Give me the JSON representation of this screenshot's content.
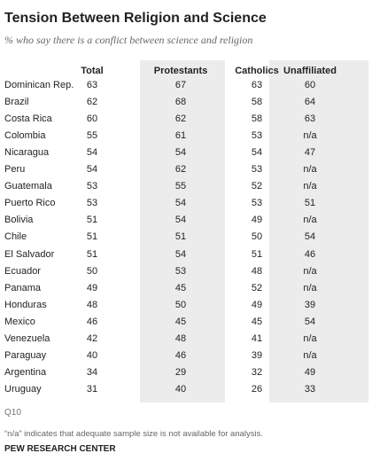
{
  "header": {
    "title": "Tension Between Religion and Science",
    "subtitle": "% who say there is a conflict between science and religion"
  },
  "table": {
    "columns": [
      "Total",
      "Protestants",
      "Catholics",
      "Unaffiliated"
    ],
    "rows": [
      [
        "Dominican Rep.",
        63,
        67,
        63,
        60
      ],
      [
        "Brazil",
        62,
        68,
        58,
        64
      ],
      [
        "Costa Rica",
        60,
        62,
        58,
        63
      ],
      [
        "Colombia",
        55,
        61,
        53,
        "n/a"
      ],
      [
        "Nicaragua",
        54,
        54,
        54,
        47
      ],
      [
        "Peru",
        54,
        62,
        53,
        "n/a"
      ],
      [
        "Guatemala",
        53,
        55,
        52,
        "n/a"
      ],
      [
        "Puerto Rico",
        53,
        54,
        53,
        51
      ],
      [
        "Bolivia",
        51,
        54,
        49,
        "n/a"
      ],
      [
        "Chile",
        51,
        51,
        50,
        54
      ],
      [
        "El Salvador",
        51,
        54,
        51,
        46
      ],
      [
        "Ecuador",
        50,
        53,
        48,
        "n/a"
      ],
      [
        "Panama",
        49,
        45,
        52,
        "n/a"
      ],
      [
        "Honduras",
        48,
        50,
        49,
        39
      ],
      [
        "Mexico",
        46,
        45,
        45,
        54
      ],
      [
        "Venezuela",
        42,
        48,
        41,
        "n/a"
      ],
      [
        "Paraguay",
        40,
        46,
        39,
        "n/a"
      ],
      [
        "Argentina",
        34,
        29,
        32,
        49
      ],
      [
        "Uruguay",
        31,
        40,
        26,
        33
      ]
    ]
  },
  "footer": {
    "question": "Q10",
    "note": "“n/a” indicates that adequate sample size is not available for analysis.",
    "source": "PEW RESEARCH CENTER"
  }
}
